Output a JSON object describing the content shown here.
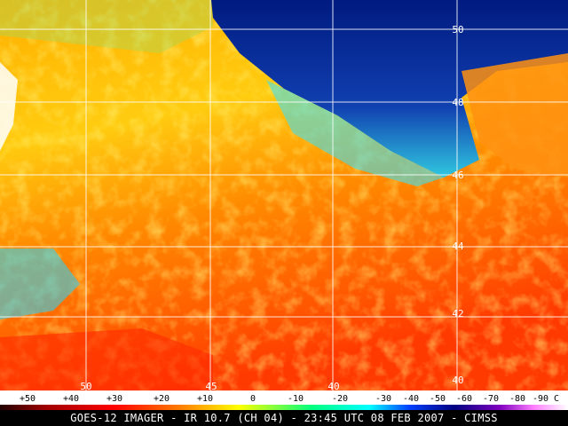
{
  "map": {
    "latitude_labels": [
      "50",
      "48",
      "46",
      "44",
      "42",
      "40"
    ],
    "longitude_labels": [
      "50",
      "45",
      "40"
    ],
    "colorbar_labels": [
      "+50",
      "+40",
      "+30",
      "+20",
      "+10",
      "0",
      "-10",
      "-20",
      "-30",
      "-40",
      "-50",
      "-60",
      "-70",
      "-80",
      "-90 C"
    ]
  },
  "footer": "GOES-12 IMAGER - IR 10.7 (CH 04) - 23:45 UTC 08 FEB 2007 - CIMSS"
}
